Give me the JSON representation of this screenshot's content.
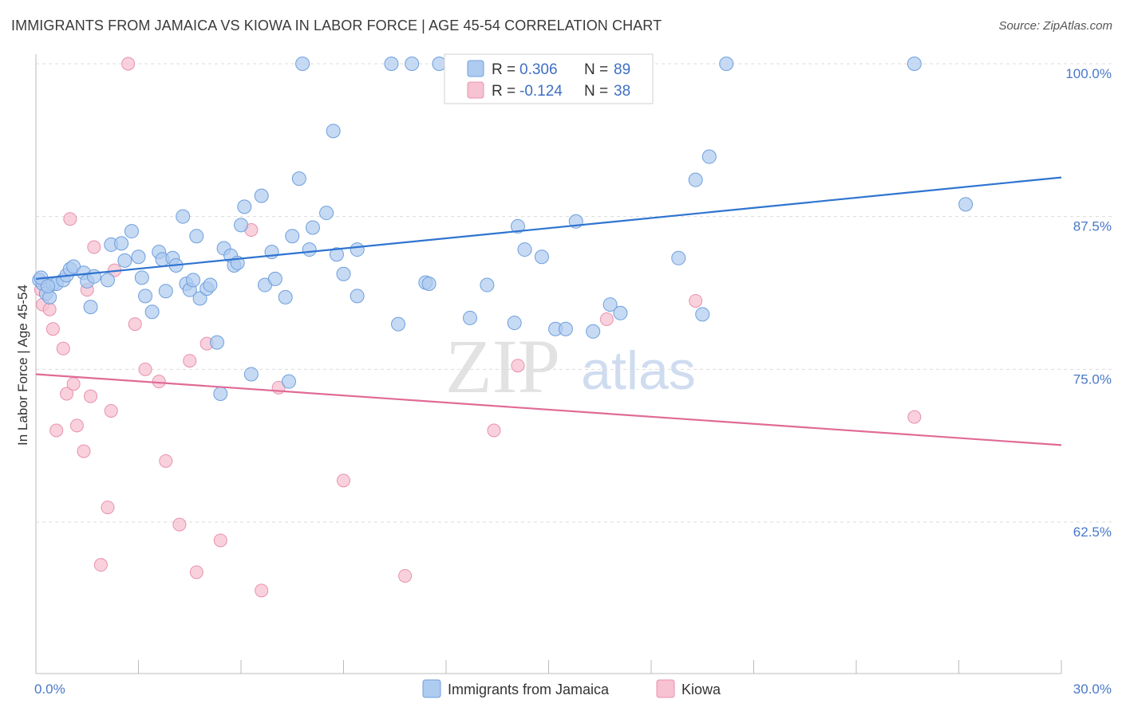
{
  "title": "IMMIGRANTS FROM JAMAICA VS KIOWA IN LABOR FORCE | AGE 45-54 CORRELATION CHART",
  "source": "Source: ZipAtlas.com",
  "watermark": {
    "zip": "ZIP",
    "atlas": "atlas"
  },
  "legend": {
    "r_label": "R =",
    "n_label": "N =",
    "rows": [
      {
        "r": "0.306",
        "n": "89"
      },
      {
        "r": "-0.124",
        "n": "38"
      }
    ]
  },
  "colors": {
    "blue_fill": "#aecbf0",
    "blue_stroke": "#6e9fdc",
    "blue_line": "#2f74d0",
    "pink_fill": "#f7c2d2",
    "pink_stroke": "#e891ad",
    "pink_line": "#e06b96",
    "tick_label": "#4a78c8",
    "grid": "#dcdcdc"
  },
  "chart_data": {
    "type": "scatter",
    "xlabel": "",
    "ylabel": "In Labor Force | Age 45-54",
    "xlim": [
      0.0,
      30.0
    ],
    "ylim": [
      50.0,
      102.5
    ],
    "x_tick_labels": [
      "0.0%",
      "30.0%"
    ],
    "y_ticks": [
      62.5,
      75.0,
      87.5,
      100.0
    ],
    "y_tick_labels": [
      "62.5%",
      "75.0%",
      "87.5%",
      "100.0%"
    ],
    "grid": "horizontal dashed",
    "legend_position": "top-center",
    "bottom_legend": [
      "Immigrants from Jamaica",
      "Kiowa"
    ],
    "series": [
      {
        "name": "Immigrants from Jamaica",
        "color": "blue",
        "trend": {
          "x": [
            0.0,
            30.0
          ],
          "y": [
            82.4,
            90.7
          ]
        },
        "points": [
          [
            0.1,
            82.3
          ],
          [
            0.2,
            82.0
          ],
          [
            0.3,
            81.2
          ],
          [
            0.4,
            80.9
          ],
          [
            0.5,
            82.0
          ],
          [
            0.6,
            82.0
          ],
          [
            0.8,
            82.3
          ],
          [
            0.9,
            82.7
          ],
          [
            1.0,
            83.2
          ],
          [
            1.1,
            83.4
          ],
          [
            1.4,
            82.9
          ],
          [
            1.5,
            82.2
          ],
          [
            1.6,
            80.1
          ],
          [
            1.7,
            82.6
          ],
          [
            2.1,
            82.3
          ],
          [
            2.2,
            85.2
          ],
          [
            2.5,
            85.3
          ],
          [
            2.6,
            83.9
          ],
          [
            2.8,
            86.3
          ],
          [
            3.0,
            84.2
          ],
          [
            3.1,
            82.5
          ],
          [
            3.2,
            81.0
          ],
          [
            3.4,
            79.7
          ],
          [
            3.6,
            84.6
          ],
          [
            3.7,
            84.0
          ],
          [
            3.8,
            81.4
          ],
          [
            4.0,
            84.1
          ],
          [
            4.1,
            83.5
          ],
          [
            4.3,
            87.5
          ],
          [
            4.4,
            82.0
          ],
          [
            4.5,
            81.5
          ],
          [
            4.6,
            82.3
          ],
          [
            4.7,
            85.9
          ],
          [
            4.8,
            80.8
          ],
          [
            5.0,
            81.6
          ],
          [
            5.1,
            81.9
          ],
          [
            5.3,
            77.2
          ],
          [
            5.5,
            84.9
          ],
          [
            5.7,
            84.3
          ],
          [
            5.8,
            83.5
          ],
          [
            5.9,
            83.7
          ],
          [
            6.0,
            86.8
          ],
          [
            6.1,
            88.3
          ],
          [
            6.3,
            74.6
          ],
          [
            6.6,
            89.2
          ],
          [
            6.7,
            81.9
          ],
          [
            6.9,
            84.6
          ],
          [
            7.0,
            82.4
          ],
          [
            7.3,
            80.9
          ],
          [
            7.5,
            85.9
          ],
          [
            7.7,
            90.6
          ],
          [
            7.8,
            100.0
          ],
          [
            8.0,
            84.8
          ],
          [
            8.1,
            86.6
          ],
          [
            8.5,
            87.8
          ],
          [
            8.7,
            94.5
          ],
          [
            8.8,
            84.4
          ],
          [
            9.0,
            82.8
          ],
          [
            9.4,
            84.8
          ],
          [
            9.4,
            81.0
          ],
          [
            10.4,
            100.0
          ],
          [
            10.6,
            78.7
          ],
          [
            11.0,
            100.0
          ],
          [
            11.4,
            82.1
          ],
          [
            11.5,
            82.0
          ],
          [
            11.8,
            100.0
          ],
          [
            12.7,
            79.2
          ],
          [
            13.2,
            81.9
          ],
          [
            14.0,
            78.8
          ],
          [
            14.1,
            86.7
          ],
          [
            14.3,
            84.8
          ],
          [
            14.8,
            84.2
          ],
          [
            15.2,
            78.3
          ],
          [
            15.5,
            78.3
          ],
          [
            15.8,
            87.1
          ],
          [
            16.3,
            78.1
          ],
          [
            16.8,
            80.3
          ],
          [
            17.1,
            79.6
          ],
          [
            18.8,
            84.1
          ],
          [
            19.3,
            90.5
          ],
          [
            19.5,
            79.5
          ],
          [
            19.7,
            92.4
          ],
          [
            20.2,
            100.0
          ],
          [
            5.4,
            73.0
          ],
          [
            7.4,
            74.0
          ],
          [
            25.7,
            100.0
          ],
          [
            27.2,
            88.5
          ],
          [
            0.15,
            82.5
          ],
          [
            0.35,
            81.8
          ]
        ]
      },
      {
        "name": "Kiowa",
        "color": "pink",
        "trend": {
          "x": [
            0.0,
            30.0
          ],
          "y": [
            74.6,
            68.8
          ]
        },
        "points": [
          [
            0.2,
            80.3
          ],
          [
            0.4,
            79.9
          ],
          [
            0.5,
            78.3
          ],
          [
            0.6,
            70.0
          ],
          [
            0.8,
            76.7
          ],
          [
            0.9,
            73.0
          ],
          [
            1.0,
            87.3
          ],
          [
            1.1,
            73.8
          ],
          [
            1.2,
            70.4
          ],
          [
            1.4,
            68.3
          ],
          [
            1.5,
            81.5
          ],
          [
            1.6,
            72.8
          ],
          [
            1.7,
            85.0
          ],
          [
            1.9,
            59.0
          ],
          [
            2.1,
            63.7
          ],
          [
            2.2,
            71.6
          ],
          [
            2.3,
            83.1
          ],
          [
            2.7,
            100.0
          ],
          [
            2.9,
            78.7
          ],
          [
            3.2,
            75.0
          ],
          [
            3.6,
            74.0
          ],
          [
            3.8,
            67.5
          ],
          [
            4.2,
            62.3
          ],
          [
            4.5,
            75.7
          ],
          [
            4.7,
            58.4
          ],
          [
            5.0,
            77.1
          ],
          [
            5.4,
            61.0
          ],
          [
            6.3,
            86.4
          ],
          [
            6.6,
            56.9
          ],
          [
            7.1,
            73.5
          ],
          [
            9.0,
            65.9
          ],
          [
            10.8,
            58.1
          ],
          [
            13.4,
            70.0
          ],
          [
            14.1,
            75.3
          ],
          [
            16.7,
            79.1
          ],
          [
            19.3,
            80.6
          ],
          [
            25.7,
            71.1
          ],
          [
            0.15,
            81.5
          ]
        ]
      }
    ]
  }
}
